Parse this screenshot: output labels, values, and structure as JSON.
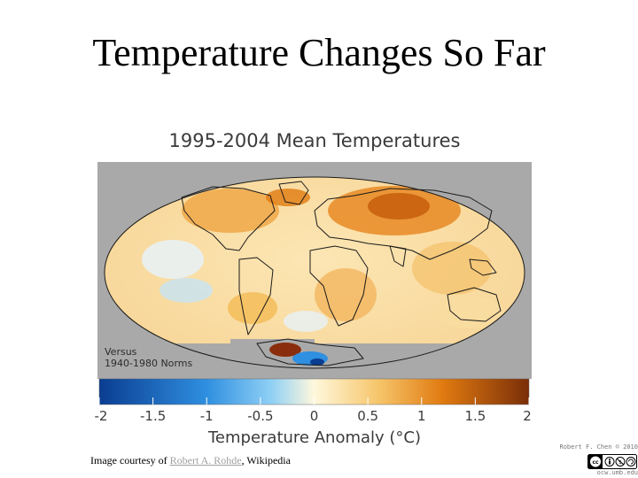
{
  "slide": {
    "title": "Temperature Changes So Far",
    "credit_prefix": "Image courtesy of ",
    "credit_link": "Robert A. Rohde",
    "credit_suffix": ", Wikipedia",
    "author_notice": "Robert F. Chen © 2010",
    "site": "ocw.umb.edu",
    "license_badge": "cc-by-nc-sa"
  },
  "map": {
    "title": "1995-2004 Mean Temperatures",
    "versus_line1": "Versus",
    "versus_line2": "1940-1980 Norms",
    "projection": "mollweide",
    "background_color": "#a9a9a9"
  },
  "chart_data": {
    "type": "heatmap",
    "title": "1995-2004 Mean Temperatures",
    "colorbar_label": "Temperature Anomaly (°C)",
    "range": [
      -2,
      2
    ],
    "ticks": [
      -2,
      -1.5,
      -1,
      -0.5,
      0,
      0.5,
      1,
      1.5,
      2
    ],
    "tick_labels": [
      "-2",
      "-1.5",
      "-1",
      "-0.5",
      "0",
      "0.5",
      "1",
      "1.5",
      "2"
    ],
    "colors": {
      "cold_extreme": "#0a3d91",
      "cold": "#2f8fe0",
      "cool": "#8fd0f5",
      "neutral": "#fff8dc",
      "warm": "#f6c56a",
      "hot": "#e07a10",
      "hot_extreme": "#7a2e08"
    }
  }
}
